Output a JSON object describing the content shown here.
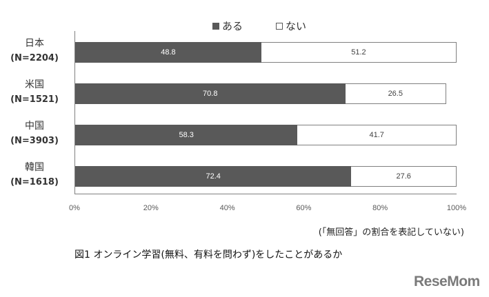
{
  "chart_data": {
    "type": "bar",
    "orientation": "horizontal",
    "stacked": true,
    "title": "図1 オンライン学習(無料、有料を問わず)をしたことがあるか",
    "categories": [
      "日本",
      "米国",
      "中国",
      "韓国"
    ],
    "sample_sizes": [
      "(N=2204)",
      "(N=1521)",
      "(N=3903)",
      "(N=1618)"
    ],
    "series": [
      {
        "name": "ある",
        "color": "#595959",
        "values": [
          48.8,
          70.8,
          58.3,
          72.4
        ]
      },
      {
        "name": "ない",
        "color": "#ffffff",
        "values": [
          51.2,
          26.5,
          41.7,
          27.6
        ]
      }
    ],
    "xlabel": "",
    "ylabel": "",
    "xlim": [
      0,
      100
    ],
    "xticks": [
      "0%",
      "20%",
      "40%",
      "60%",
      "80%",
      "100%"
    ],
    "grid": false,
    "legend_position": "top",
    "note": "(「無回答」の割合を表記していない)"
  },
  "legend": {
    "yes": "ある",
    "no": "ない"
  },
  "rows": [
    {
      "name": "日本",
      "n": "(N=2204)",
      "yes": 48.8,
      "no": 51.2,
      "yes_label": "48.8",
      "no_label": "51.2"
    },
    {
      "name": "米国",
      "n": "(N=1521)",
      "yes": 70.8,
      "no": 26.5,
      "yes_label": "70.8",
      "no_label": "26.5"
    },
    {
      "name": "中国",
      "n": "(N=3903)",
      "yes": 58.3,
      "no": 41.7,
      "yes_label": "58.3",
      "no_label": "41.7"
    },
    {
      "name": "韓国",
      "n": "(N=1618)",
      "yes": 72.4,
      "no": 27.6,
      "yes_label": "72.4",
      "no_label": "27.6"
    }
  ],
  "ticks": [
    "0%",
    "20%",
    "40%",
    "60%",
    "80%",
    "100%"
  ],
  "note": "(「無回答」の割合を表記していない)",
  "caption": "図1 オンライン学習(無料、有料を問わず)をしたことがあるか",
  "logo": "ReseMom"
}
